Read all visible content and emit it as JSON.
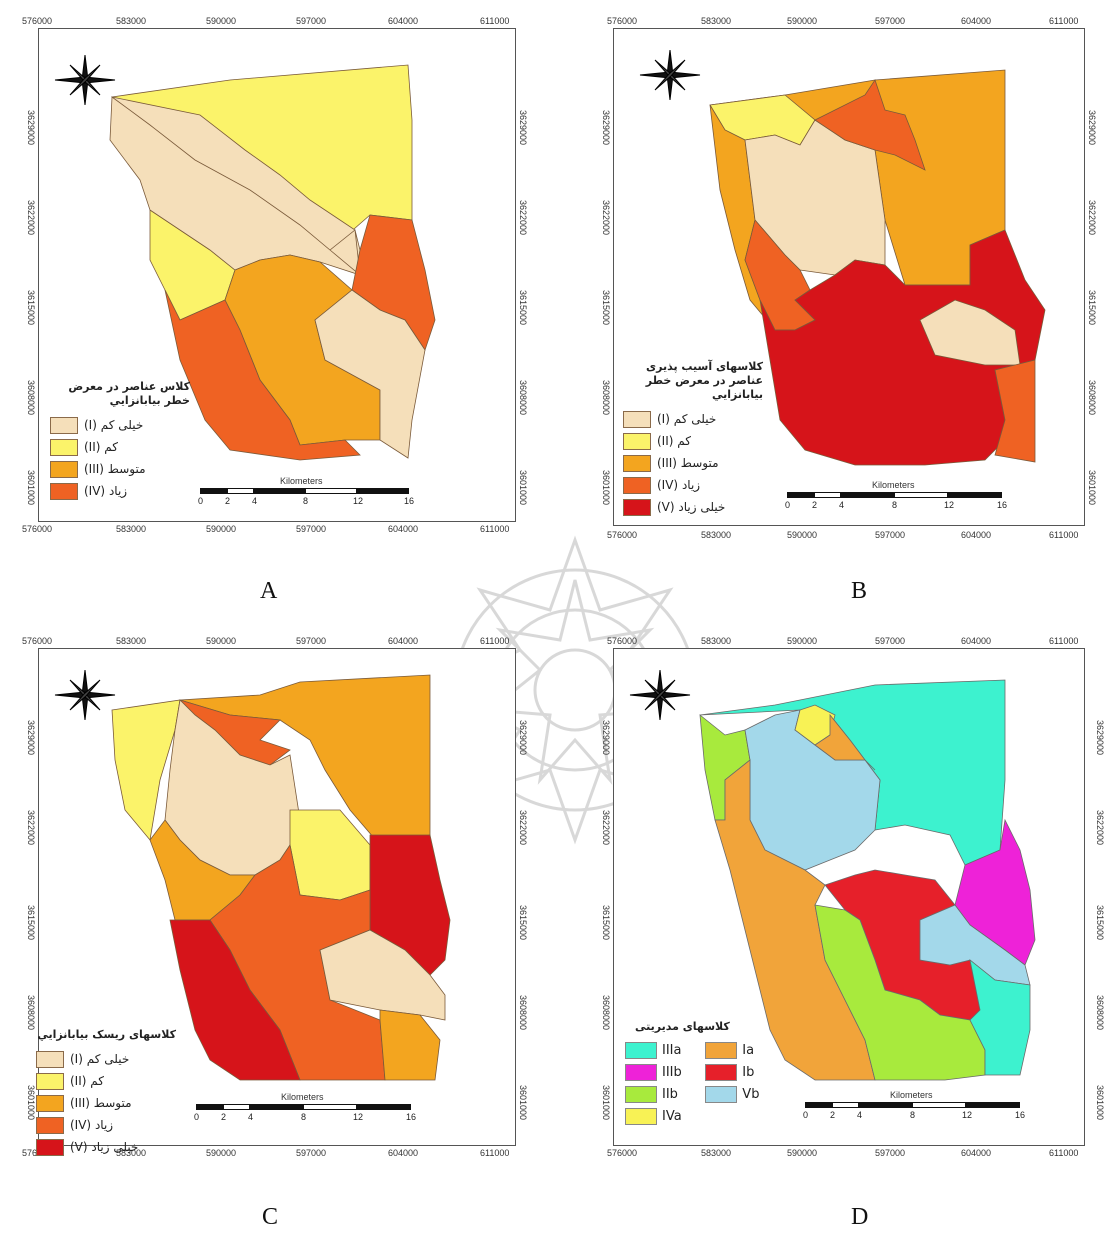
{
  "colors": {
    "very_low": "#f5dfba",
    "low": "#fbf36a",
    "medium": "#f3a51f",
    "high": "#ef6223",
    "very_high": "#d6141a",
    "IIIa": "#3df2cf",
    "IIIb": "#ee22d8",
    "IIb": "#a8ea3d",
    "IVa": "#f8f255",
    "Ia": "#f1a43a",
    "Ib": "#e6202a",
    "Vb": "#a3d8ea"
  },
  "axes": {
    "x_ticks": [
      "576000",
      "583000",
      "590000",
      "597000",
      "604000",
      "611000"
    ],
    "y_ticks": [
      "3629000",
      "3622000",
      "3615000",
      "3608000",
      "3601000"
    ],
    "scale_ticks": [
      "0",
      "2",
      "4",
      "8",
      "12",
      "16"
    ],
    "scale_ticks_c": [
      "0",
      "2",
      "4",
      "8",
      "12",
      "16"
    ],
    "scale_unit": "Kilometers"
  },
  "panels": {
    "A": {
      "caption": "A",
      "legend_title": "كلاس عناصر در معرض خطر بيابانزايي",
      "legend_items": [
        {
          "label": "(I) خيلی كم",
          "color": "very_low"
        },
        {
          "label": "(II) كم",
          "color": "low"
        },
        {
          "label": "(III) متوسط",
          "color": "medium"
        },
        {
          "label": "(IV) زياد",
          "color": "high"
        }
      ]
    },
    "B": {
      "caption": "B",
      "legend_title": "كلاسهای آسيب پذيری عناصر در معرض خطر بيابانزايي",
      "legend_items": [
        {
          "label": "(I) خيلی كم",
          "color": "very_low"
        },
        {
          "label": "(II) كم",
          "color": "low"
        },
        {
          "label": "(III) متوسط",
          "color": "medium"
        },
        {
          "label": "(IV) زياد",
          "color": "high"
        },
        {
          "label": "(V) خيلی زياد",
          "color": "very_high"
        }
      ]
    },
    "C": {
      "caption": "C",
      "legend_title": "كلاسهای ريسک بيابانزايي",
      "legend_items": [
        {
          "label": "(I) خيلی كم",
          "color": "very_low"
        },
        {
          "label": "(II) كم",
          "color": "low"
        },
        {
          "label": "(III) متوسط",
          "color": "medium"
        },
        {
          "label": "(IV) زياد",
          "color": "high"
        },
        {
          "label": "(V) خيلی زياد",
          "color": "very_high"
        }
      ]
    },
    "D": {
      "caption": "D",
      "legend_title": "كلاسهای مديريتی",
      "legend_items": [
        {
          "label": "IIIa",
          "color": "IIIa"
        },
        {
          "label": "Ia",
          "color": "Ia"
        },
        {
          "label": "IIIb",
          "color": "IIIb"
        },
        {
          "label": "Ib",
          "color": "Ib"
        },
        {
          "label": "IIb",
          "color": "IIb"
        },
        {
          "label": "Vb",
          "color": "Vb"
        },
        {
          "label": "IVa",
          "color": "IVa"
        }
      ]
    }
  }
}
